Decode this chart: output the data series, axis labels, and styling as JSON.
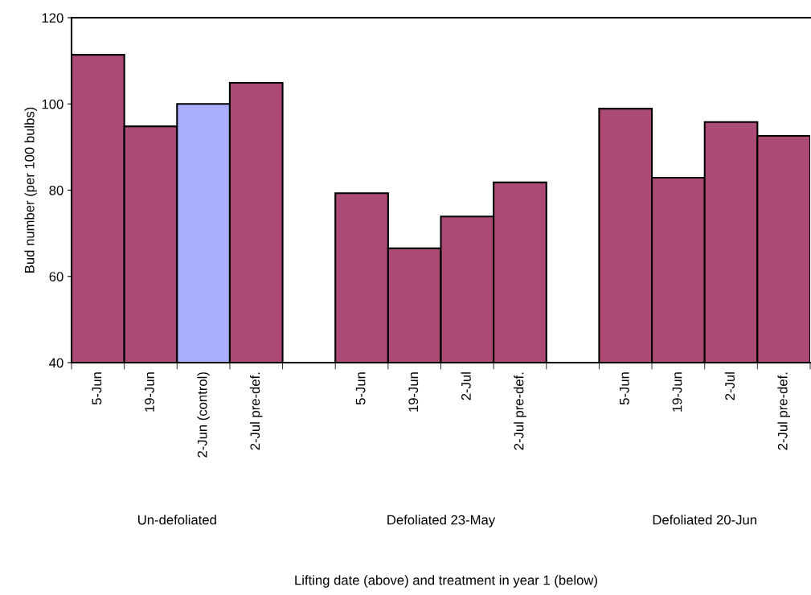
{
  "chart_data": {
    "type": "bar",
    "ylabel": "Bud number (per 100 bulbs)",
    "categories": [
      "5-Jun",
      "19-Jun",
      "2-Jun (control)",
      "2-Jul pre-def.",
      null,
      "5-Jun",
      "19-Jun",
      "2-Jul",
      "2-Jul pre-def.",
      null,
      "5-Jun",
      "19-Jun",
      "2-Jul",
      "2-Jul pre-def."
    ],
    "values": [
      111.4,
      94.8,
      100,
      104.9,
      null,
      79.3,
      66.5,
      73.9,
      81.8,
      null,
      98.9,
      82.9,
      95.8,
      92.6
    ],
    "colors": [
      "#aa4a75",
      "#aa4a75",
      "#a9aefe",
      "#aa4a75",
      "#aa4a75",
      "#aa4a75",
      "#aa4a75",
      "#aa4a75",
      "#aa4a75",
      "#aa4a75",
      "#aa4a75",
      "#aa4a75",
      "#aa4a75",
      "#aa4a75"
    ],
    "ylim": [
      40,
      120
    ],
    "yticks": [
      40,
      60,
      80,
      100,
      120
    ],
    "grid": false,
    "legend": false,
    "annotations": [
      "Un-defoliated",
      "Defoliated 23-May",
      "Defoliated 20-Jun",
      "Lifting date (above) and treatment in year 1 (below)"
    ]
  }
}
